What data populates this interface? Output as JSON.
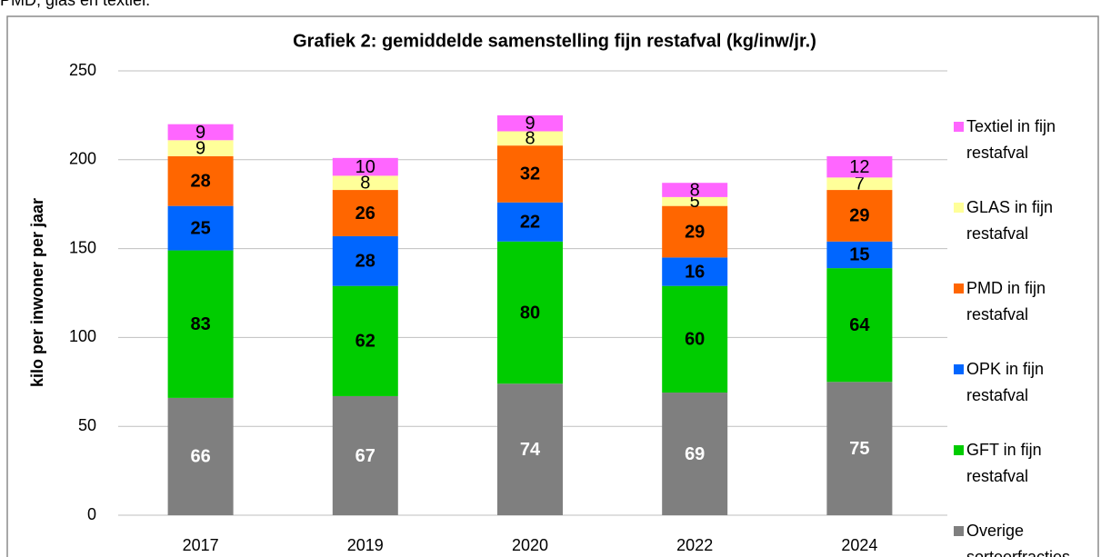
{
  "note": "PMD, glas en textiel.",
  "chart_data": {
    "type": "bar",
    "stacked": true,
    "title": "Grafiek  2: gemiddelde samenstelling fijn restafval (kg/inw/jr.)",
    "ylabel": "kilo per inwoner per jaar",
    "categories": [
      "2017",
      "2019",
      "2020",
      "2022",
      "2024"
    ],
    "series": [
      {
        "name": "Overige sorteerfracties",
        "color": "#7f7f7f",
        "values": [
          66,
          67,
          74,
          69,
          75
        ]
      },
      {
        "name": "GFT in fijn restafval",
        "color": "#00cc00",
        "values": [
          83,
          62,
          80,
          60,
          64
        ]
      },
      {
        "name": "OPK in fijn restafval",
        "color": "#0066ff",
        "values": [
          25,
          28,
          22,
          16,
          15
        ]
      },
      {
        "name": "PMD in fijn restafval",
        "color": "#ff6600",
        "values": [
          28,
          26,
          32,
          29,
          29
        ]
      },
      {
        "name": "GLAS in fijn restafval",
        "color": "#ffff99",
        "values": [
          9,
          8,
          8,
          5,
          7
        ]
      },
      {
        "name": "Textiel in fijn restafval",
        "color": "#ff66ff",
        "values": [
          9,
          10,
          9,
          8,
          12
        ]
      }
    ],
    "ylim": [
      0,
      250
    ],
    "yticks": [
      0,
      50,
      100,
      150,
      200,
      250
    ],
    "grid": true,
    "legend": "right"
  }
}
